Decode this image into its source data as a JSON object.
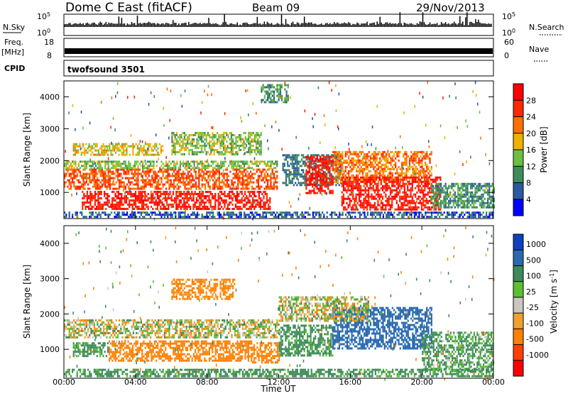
{
  "header": {
    "title": "Dome C East (fitACF)",
    "beam": "Beam 09",
    "date": "29/Nov/2013"
  },
  "strips": {
    "nsky_label": "N.Sky",
    "nsky_ticks": [
      "10^5",
      "10^0"
    ],
    "nsearch_label": "N.Search",
    "freq_label_1": "Freq.",
    "freq_label_2": "[MHz]",
    "freq_ticks": [
      "18",
      "8"
    ],
    "nave_ticks": [
      "60",
      "0"
    ],
    "nave_label": "Nave",
    "cpid_label": "CPID",
    "cpid_value": "twofsound 3501"
  },
  "x_axis": {
    "label": "Time UT",
    "ticks": [
      "00:00",
      "04:00",
      "08:00",
      "12:00",
      "16:00",
      "20:00",
      "00:00"
    ]
  },
  "colors": {
    "power_scale": [
      "#0000ff",
      "#2a5aa0",
      "#3e8c5a",
      "#6cc040",
      "#f0b000",
      "#ff7000",
      "#ff2800",
      "#ff0000"
    ],
    "velocity_scale": [
      "#1040c0",
      "#2a6ab0",
      "#3e8a5a",
      "#5cc030",
      "#c8c8c0",
      "#f0a030",
      "#ff8000",
      "#ff4000",
      "#ff0000"
    ]
  },
  "chart_data": [
    {
      "type": "heatmap",
      "title": "",
      "xlabel": "Time UT",
      "ylabel": "Slant Range [km]",
      "y_ticks": [
        "1000",
        "2000",
        "3000",
        "4000"
      ],
      "xlim": [
        "00:00",
        "24:00"
      ],
      "ylim": [
        180,
        4500
      ],
      "colorbar_label": "Power [dB]",
      "colorbar_ticks": [
        "4",
        "8",
        "12",
        "16",
        "20",
        "24",
        "28"
      ],
      "colorbar_range": [
        0,
        32
      ],
      "bands": [
        {
          "t0": 0.0,
          "t1": 11.9,
          "r0": 1100,
          "r1": 1750,
          "value": 24
        },
        {
          "t0": 1.0,
          "t1": 11.5,
          "r0": 500,
          "r1": 1050,
          "value": 28
        },
        {
          "t0": 0.0,
          "t1": 11.9,
          "r0": 1750,
          "r1": 2000,
          "value": 14
        },
        {
          "t0": 0.5,
          "t1": 5.5,
          "r0": 2200,
          "r1": 2550,
          "value": 18
        },
        {
          "t0": 6.0,
          "t1": 11.0,
          "r0": 2200,
          "r1": 2900,
          "value": 14
        },
        {
          "t0": 12.2,
          "t1": 15.5,
          "r0": 1200,
          "r1": 2200,
          "value": 8
        },
        {
          "t0": 13.5,
          "t1": 15.0,
          "r0": 1000,
          "r1": 2150,
          "value": 28
        },
        {
          "t0": 15.0,
          "t1": 20.5,
          "r0": 1300,
          "r1": 2300,
          "value": 22
        },
        {
          "t0": 15.5,
          "t1": 21.0,
          "r0": 450,
          "r1": 1500,
          "value": 28
        },
        {
          "t0": 20.5,
          "t1": 24.0,
          "r0": 500,
          "r1": 1300,
          "value": 10
        },
        {
          "t0": 0.0,
          "t1": 24.0,
          "r0": 250,
          "r1": 400,
          "value": 6
        },
        {
          "t0": 11.0,
          "t1": 12.5,
          "r0": 3800,
          "r1": 4400,
          "value": 10
        }
      ]
    },
    {
      "type": "heatmap",
      "title": "",
      "xlabel": "Time UT",
      "ylabel": "Slant Range [km]",
      "y_ticks": [
        "1000",
        "2000",
        "3000",
        "4000"
      ],
      "xlim": [
        "00:00",
        "24:00"
      ],
      "ylim": [
        180,
        4500
      ],
      "colorbar_label": "Velocity [m s^-1]",
      "colorbar_ticks": [
        "1000",
        "500",
        "100",
        "25",
        "-25",
        "-100",
        "-500",
        "-1000"
      ],
      "bands": [
        {
          "t0": 0.0,
          "t1": 12.0,
          "r0": 1350,
          "r1": 1850,
          "value": 0
        },
        {
          "t0": 2.5,
          "t1": 10.5,
          "r0": 700,
          "r1": 1250,
          "value": -300
        },
        {
          "t0": 0.5,
          "t1": 2.5,
          "r0": 800,
          "r1": 1200,
          "value": 200
        },
        {
          "t0": 10.5,
          "t1": 12.0,
          "r0": 600,
          "r1": 1200,
          "value": -300
        },
        {
          "t0": 6.0,
          "t1": 9.5,
          "r0": 2400,
          "r1": 3000,
          "value": -200
        },
        {
          "t0": 12.0,
          "t1": 15.0,
          "r0": 800,
          "r1": 1700,
          "value": 200
        },
        {
          "t0": 15.0,
          "t1": 20.5,
          "r0": 1000,
          "r1": 2200,
          "value": 700
        },
        {
          "t0": 12.0,
          "t1": 17.0,
          "r0": 1800,
          "r1": 2500,
          "value": 0
        },
        {
          "t0": 20.0,
          "t1": 24.0,
          "r0": 400,
          "r1": 1500,
          "value": 150
        },
        {
          "t0": 0.0,
          "t1": 24.0,
          "r0": 220,
          "r1": 450,
          "value": 200
        }
      ]
    }
  ]
}
